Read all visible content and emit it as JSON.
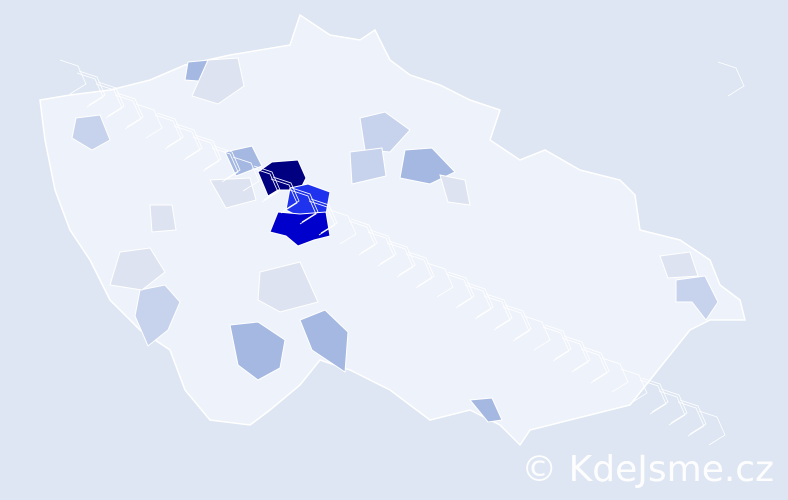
{
  "map": {
    "base_color": "#eef2fa",
    "border_color": "#ffffff",
    "background": "#dde6f2",
    "regions": [
      {
        "level": "highest",
        "color": "#000080"
      },
      {
        "level": "high",
        "color": "#1f33ee"
      },
      {
        "level": "high",
        "color": "#0000cc"
      },
      {
        "level": "medium",
        "color": "#a4b8e2"
      },
      {
        "level": "low",
        "color": "#c7d3ec"
      },
      {
        "level": "lowest",
        "color": "#dde3f0"
      }
    ]
  },
  "watermark": "© KdeJsme.cz"
}
